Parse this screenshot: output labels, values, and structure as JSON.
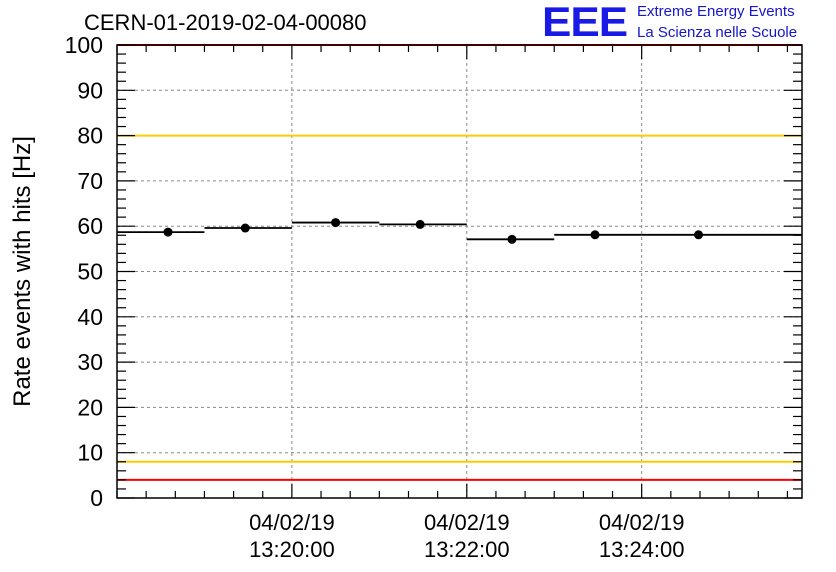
{
  "title": "CERN-01-2019-02-04-00080",
  "logo": {
    "mark": "EEE",
    "line1": "Extreme Energy Events",
    "line2": "La Scienza nelle Scuole",
    "color": "#1a1ae6"
  },
  "chart_data": {
    "type": "scatter",
    "title": "CERN-01-2019-02-04-00080",
    "xlabel": "",
    "ylabel": "Rate events with hits [Hz]",
    "ylim": [
      0,
      100
    ],
    "yticks": [
      0,
      10,
      20,
      30,
      40,
      50,
      60,
      70,
      80,
      90,
      100
    ],
    "xlim_seconds": [
      "13:18:00",
      "13:25:50"
    ],
    "xticks": [
      {
        "date": "04/02/19",
        "time": "13:20:00"
      },
      {
        "date": "04/02/19",
        "time": "13:22:00"
      },
      {
        "date": "04/02/19",
        "time": "13:24:00"
      }
    ],
    "grid": true,
    "series": [
      {
        "points": [
          {
            "x_start": "13:18:00",
            "x": "13:18:35",
            "x_end": "13:19:00",
            "y": 58.7
          },
          {
            "x_start": "13:19:00",
            "x": "13:19:28",
            "x_end": "13:20:00",
            "y": 59.6
          },
          {
            "x_start": "13:20:00",
            "x": "13:20:30",
            "x_end": "13:21:00",
            "y": 60.8
          },
          {
            "x_start": "13:21:00",
            "x": "13:21:28",
            "x_end": "13:22:00",
            "y": 60.4
          },
          {
            "x_start": "13:22:00",
            "x": "13:22:31",
            "x_end": "13:23:00",
            "y": 57.1
          },
          {
            "x_start": "13:23:00",
            "x": "13:23:28",
            "x_end": "13:24:00",
            "y": 58.1
          },
          {
            "x_start": "13:24:00",
            "x": "13:24:39",
            "x_end": "13:25:50",
            "y": 58.1
          }
        ],
        "color": "#000000"
      }
    ],
    "reference_lines": [
      {
        "y": 100,
        "color": "#ff0000"
      },
      {
        "y": 80,
        "color": "#ffcc00"
      },
      {
        "y": 8,
        "color": "#ffcc00"
      },
      {
        "y": 4,
        "color": "#ff0000"
      }
    ]
  }
}
